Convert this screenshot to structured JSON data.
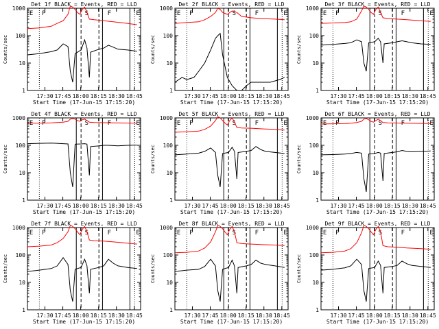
{
  "chart_data": [
    {
      "type": "line",
      "title": "Det 1f BLACK = Events, RED = LLD",
      "xlabel": "Start Time (17-Jun-15 17:15:20)",
      "ylabel": "Counts/sec",
      "ylim": [
        1,
        1000
      ],
      "yscale": "log",
      "x_ticks": [
        "17:30",
        "17:45",
        "18:00",
        "18:15",
        "18:30",
        "18:45"
      ],
      "y_ticks": [
        "1",
        "10",
        "100",
        "1000"
      ],
      "markers": [
        "E",
        "P",
        "S",
        "F",
        "E"
      ],
      "series": [
        {
          "name": "Events",
          "color": "#000000",
          "x_minutes": [
            0,
            10,
            20,
            25,
            30,
            34,
            36,
            38,
            40,
            45,
            48,
            50,
            52,
            53,
            60,
            64,
            68,
            72,
            76,
            84,
            92
          ],
          "values": [
            20,
            22,
            26,
            30,
            50,
            40,
            5,
            2,
            22,
            30,
            70,
            35,
            3,
            25,
            32,
            35,
            45,
            38,
            32,
            30,
            27
          ]
        },
        {
          "name": "LLD",
          "color": "#ff0000",
          "x_minutes": [
            0,
            10,
            20,
            25,
            30,
            34,
            36,
            38,
            40,
            42,
            44,
            46,
            48,
            50,
            52,
            56,
            64,
            72,
            84,
            92
          ],
          "values": [
            180,
            190,
            220,
            280,
            350,
            600,
            1200,
            1100,
            900,
            700,
            600,
            900,
            1100,
            700,
            400,
            380,
            350,
            320,
            280,
            250
          ]
        }
      ]
    },
    {
      "type": "line",
      "title": "Det 2f BLACK = Events, RED = LLD",
      "xlabel": "Start Time (17-Jun-15 17:15:20)",
      "ylabel": "Counts/sec",
      "ylim": [
        1,
        1000
      ],
      "yscale": "log",
      "x_ticks": [
        "17:30",
        "17:45",
        "18:00",
        "18:15",
        "18:30",
        "18:45"
      ],
      "y_ticks": [
        "1",
        "10",
        "100",
        "1000"
      ],
      "markers": [
        "E",
        "P",
        "S",
        "F",
        "E"
      ],
      "series": [
        {
          "name": "Events",
          "color": "#000000",
          "x_minutes": [
            0,
            6,
            10,
            16,
            20,
            25,
            30,
            34,
            36,
            38,
            40,
            44,
            48,
            52,
            56,
            60,
            64,
            72,
            80,
            88,
            92
          ],
          "values": [
            2,
            3,
            2.5,
            3,
            5,
            10,
            30,
            80,
            100,
            120,
            20,
            3,
            1.5,
            1,
            1,
            1.5,
            2,
            2,
            2,
            2.5,
            3
          ]
        },
        {
          "name": "LLD",
          "color": "#ff0000",
          "x_minutes": [
            0,
            10,
            20,
            25,
            30,
            34,
            36,
            38,
            40,
            44,
            48,
            52,
            56,
            64,
            72,
            84,
            92
          ],
          "values": [
            280,
            300,
            320,
            380,
            500,
            700,
            1000,
            900,
            700,
            600,
            800,
            700,
            500,
            450,
            420,
            400,
            380
          ]
        }
      ]
    },
    {
      "type": "line",
      "title": "Det 3f BLACK = Events, RED = LLD",
      "xlabel": "Start Time (17-Jun-15 17:15:20)",
      "ylabel": "Counts/sec",
      "ylim": [
        1,
        1000
      ],
      "yscale": "log",
      "x_ticks": [
        "17:30",
        "17:45",
        "18:00",
        "18:15",
        "18:30",
        "18:45"
      ],
      "y_ticks": [
        "1",
        "10",
        "100",
        "1000"
      ],
      "markers": [
        "E",
        "P",
        "S",
        "F",
        "E"
      ],
      "series": [
        {
          "name": "Events",
          "color": "#000000",
          "x_minutes": [
            0,
            10,
            20,
            25,
            30,
            34,
            36,
            38,
            40,
            45,
            48,
            50,
            52,
            53,
            60,
            64,
            68,
            72,
            76,
            84,
            92
          ],
          "values": [
            45,
            48,
            52,
            55,
            70,
            60,
            10,
            5,
            55,
            60,
            80,
            60,
            10,
            50,
            55,
            60,
            65,
            60,
            55,
            50,
            48
          ]
        },
        {
          "name": "LLD",
          "color": "#ff0000",
          "x_minutes": [
            0,
            10,
            20,
            25,
            30,
            34,
            36,
            38,
            40,
            42,
            44,
            46,
            48,
            50,
            52,
            56,
            64,
            72,
            84,
            92
          ],
          "values": [
            280,
            290,
            300,
            320,
            400,
            800,
            1200,
            1100,
            900,
            700,
            600,
            900,
            1100,
            700,
            450,
            420,
            400,
            380,
            350,
            330
          ]
        }
      ]
    },
    {
      "type": "line",
      "title": "Det 4f BLACK = Events, RED = LLD",
      "xlabel": "Start Time (17-Jun-15 17:15:20)",
      "ylabel": "Counts/sec",
      "ylim": [
        1,
        1000
      ],
      "yscale": "log",
      "x_ticks": [
        "17:30",
        "17:45",
        "18:00",
        "18:15",
        "18:30",
        "18:45"
      ],
      "y_ticks": [
        "1",
        "10",
        "100",
        "1000"
      ],
      "markers": [
        "E",
        "P",
        "S",
        "F",
        "E"
      ],
      "series": [
        {
          "name": "Events",
          "color": "#000000",
          "x_minutes": [
            0,
            10,
            20,
            25,
            30,
            34,
            36,
            38,
            40,
            45,
            48,
            50,
            52,
            53,
            60,
            64,
            68,
            72,
            76,
            84,
            92
          ],
          "values": [
            115,
            118,
            120,
            118,
            115,
            112,
            10,
            3,
            110,
            112,
            115,
            110,
            8,
            90,
            95,
            100,
            100,
            98,
            96,
            100,
            102
          ]
        },
        {
          "name": "LLD",
          "color": "#ff0000",
          "x_minutes": [
            0,
            10,
            20,
            25,
            30,
            34,
            36,
            38,
            40,
            42,
            44,
            46,
            48,
            50,
            52,
            56,
            64,
            72,
            84,
            92
          ],
          "values": [
            650,
            640,
            660,
            680,
            700,
            750,
            900,
            950,
            900,
            800,
            750,
            850,
            900,
            800,
            700,
            680,
            670,
            660,
            650,
            640
          ]
        }
      ]
    },
    {
      "type": "line",
      "title": "Det 5f BLACK = Events, RED = LLD",
      "xlabel": "Start Time (17-Jun-15 17:15:20)",
      "ylabel": "Counts/sec",
      "ylim": [
        1,
        1000
      ],
      "yscale": "log",
      "x_ticks": [
        "17:30",
        "17:45",
        "18:00",
        "18:15",
        "18:30",
        "18:45"
      ],
      "y_ticks": [
        "1",
        "10",
        "100",
        "1000"
      ],
      "markers": [
        "E",
        "P",
        "S",
        "F",
        "E"
      ],
      "series": [
        {
          "name": "Events",
          "color": "#000000",
          "x_minutes": [
            0,
            10,
            20,
            25,
            30,
            34,
            36,
            38,
            40,
            45,
            48,
            50,
            52,
            53,
            60,
            64,
            68,
            72,
            76,
            84,
            92
          ],
          "values": [
            45,
            48,
            52,
            60,
            80,
            55,
            8,
            3,
            50,
            55,
            85,
            60,
            6,
            55,
            60,
            65,
            90,
            70,
            60,
            55,
            50
          ]
        },
        {
          "name": "LLD",
          "color": "#ff0000",
          "x_minutes": [
            0,
            10,
            20,
            25,
            30,
            34,
            36,
            38,
            40,
            42,
            44,
            46,
            48,
            50,
            52,
            56,
            64,
            72,
            84,
            92
          ],
          "values": [
            300,
            310,
            330,
            380,
            500,
            800,
            1100,
            1000,
            800,
            650,
            550,
            800,
            1000,
            700,
            450,
            430,
            420,
            400,
            380,
            360
          ]
        }
      ]
    },
    {
      "type": "line",
      "title": "Det 6f BLACK = Events, RED = LLD",
      "xlabel": "Start Time (17-Jun-15 17:15:20)",
      "ylabel": "Counts/sec",
      "ylim": [
        1,
        1000
      ],
      "yscale": "log",
      "x_ticks": [
        "17:30",
        "17:45",
        "18:00",
        "18:15",
        "18:30",
        "18:45"
      ],
      "y_ticks": [
        "1",
        "10",
        "100",
        "1000"
      ],
      "markers": [
        "E",
        "P",
        "S",
        "F",
        "E"
      ],
      "series": [
        {
          "name": "Events",
          "color": "#000000",
          "x_minutes": [
            0,
            10,
            20,
            25,
            30,
            34,
            36,
            38,
            40,
            45,
            48,
            50,
            52,
            53,
            60,
            64,
            68,
            72,
            76,
            84,
            92
          ],
          "values": [
            45,
            46,
            48,
            50,
            55,
            52,
            6,
            2,
            48,
            50,
            55,
            52,
            5,
            50,
            55,
            58,
            65,
            60,
            58,
            60,
            62
          ]
        },
        {
          "name": "LLD",
          "color": "#ff0000",
          "x_minutes": [
            0,
            10,
            20,
            25,
            30,
            34,
            36,
            38,
            40,
            42,
            44,
            46,
            48,
            50,
            52,
            56,
            64,
            72,
            84,
            92
          ],
          "values": [
            600,
            610,
            620,
            640,
            680,
            750,
            900,
            950,
            850,
            750,
            700,
            800,
            900,
            780,
            680,
            660,
            650,
            640,
            630,
            620
          ]
        }
      ]
    },
    {
      "type": "line",
      "title": "Det 7f BLACK = Events, RED = LLD",
      "xlabel": "Start Time (17-Jun-15 17:15:20)",
      "ylabel": "Counts/sec",
      "ylim": [
        1,
        1000
      ],
      "yscale": "log",
      "x_ticks": [
        "17:30",
        "17:45",
        "18:00",
        "18:15",
        "18:30",
        "18:45"
      ],
      "y_ticks": [
        "1",
        "10",
        "100",
        "1000"
      ],
      "markers": [
        "E",
        "P",
        "S",
        "F",
        "E"
      ],
      "series": [
        {
          "name": "Events",
          "color": "#000000",
          "x_minutes": [
            0,
            10,
            20,
            25,
            30,
            34,
            36,
            38,
            40,
            45,
            48,
            50,
            52,
            53,
            60,
            64,
            68,
            72,
            76,
            84,
            92
          ],
          "values": [
            25,
            28,
            32,
            40,
            80,
            45,
            5,
            2,
            30,
            35,
            70,
            40,
            4,
            30,
            35,
            40,
            70,
            50,
            40,
            35,
            32
          ]
        },
        {
          "name": "LLD",
          "color": "#ff0000",
          "x_minutes": [
            0,
            10,
            20,
            25,
            30,
            34,
            36,
            38,
            40,
            42,
            44,
            46,
            48,
            50,
            52,
            56,
            64,
            72,
            84,
            92
          ],
          "values": [
            200,
            210,
            230,
            280,
            400,
            700,
            1200,
            1100,
            900,
            700,
            550,
            850,
            1100,
            700,
            350,
            330,
            320,
            300,
            270,
            250
          ]
        }
      ]
    },
    {
      "type": "line",
      "title": "Det 8f BLACK = Events, RED = LLD",
      "xlabel": "Start Time (17-Jun-15 17:15:20)",
      "ylabel": "Counts/sec",
      "ylim": [
        1,
        1000
      ],
      "yscale": "log",
      "x_ticks": [
        "17:30",
        "17:45",
        "18:00",
        "18:15",
        "18:30",
        "18:45"
      ],
      "y_ticks": [
        "1",
        "10",
        "100",
        "1000"
      ],
      "markers": [
        "E",
        "P",
        "S",
        "F",
        "E"
      ],
      "series": [
        {
          "name": "Events",
          "color": "#000000",
          "x_minutes": [
            0,
            10,
            20,
            25,
            30,
            34,
            36,
            38,
            40,
            45,
            48,
            50,
            52,
            53,
            60,
            64,
            68,
            72,
            76,
            84,
            92
          ],
          "values": [
            25,
            28,
            30,
            38,
            70,
            40,
            5,
            2,
            30,
            35,
            65,
            40,
            4,
            35,
            40,
            45,
            65,
            50,
            45,
            40,
            35
          ]
        },
        {
          "name": "LLD",
          "color": "#ff0000",
          "x_minutes": [
            0,
            10,
            20,
            25,
            30,
            34,
            36,
            38,
            40,
            42,
            44,
            46,
            48,
            50,
            52,
            56,
            64,
            72,
            84,
            92
          ],
          "values": [
            120,
            125,
            140,
            180,
            300,
            700,
            1200,
            1100,
            900,
            700,
            550,
            850,
            1100,
            700,
            280,
            260,
            250,
            240,
            230,
            220
          ]
        }
      ]
    },
    {
      "type": "line",
      "title": "Det 9f BLACK = Events, RED = LLD",
      "xlabel": "Start Time (17-Jun-15 17:15:20)",
      "ylabel": "Counts/sec",
      "ylim": [
        1,
        1000
      ],
      "yscale": "log",
      "x_ticks": [
        "17:30",
        "17:45",
        "18:00",
        "18:15",
        "18:30",
        "18:45"
      ],
      "y_ticks": [
        "1",
        "10",
        "100",
        "1000"
      ],
      "markers": [
        "E",
        "P",
        "S",
        "F",
        "E"
      ],
      "series": [
        {
          "name": "Events",
          "color": "#000000",
          "x_minutes": [
            0,
            10,
            20,
            25,
            30,
            34,
            36,
            38,
            40,
            45,
            48,
            50,
            52,
            53,
            60,
            64,
            68,
            72,
            76,
            84,
            92
          ],
          "values": [
            28,
            30,
            34,
            40,
            70,
            45,
            5,
            2,
            32,
            35,
            60,
            42,
            4,
            35,
            38,
            42,
            60,
            48,
            42,
            38,
            35
          ]
        },
        {
          "name": "LLD",
          "color": "#ff0000",
          "x_minutes": [
            0,
            10,
            20,
            25,
            30,
            34,
            36,
            38,
            40,
            42,
            44,
            46,
            48,
            50,
            52,
            56,
            64,
            72,
            84,
            92
          ],
          "values": [
            120,
            125,
            140,
            170,
            280,
            650,
            1200,
            1100,
            900,
            700,
            550,
            850,
            1100,
            700,
            220,
            200,
            190,
            180,
            170,
            160
          ]
        }
      ]
    }
  ]
}
